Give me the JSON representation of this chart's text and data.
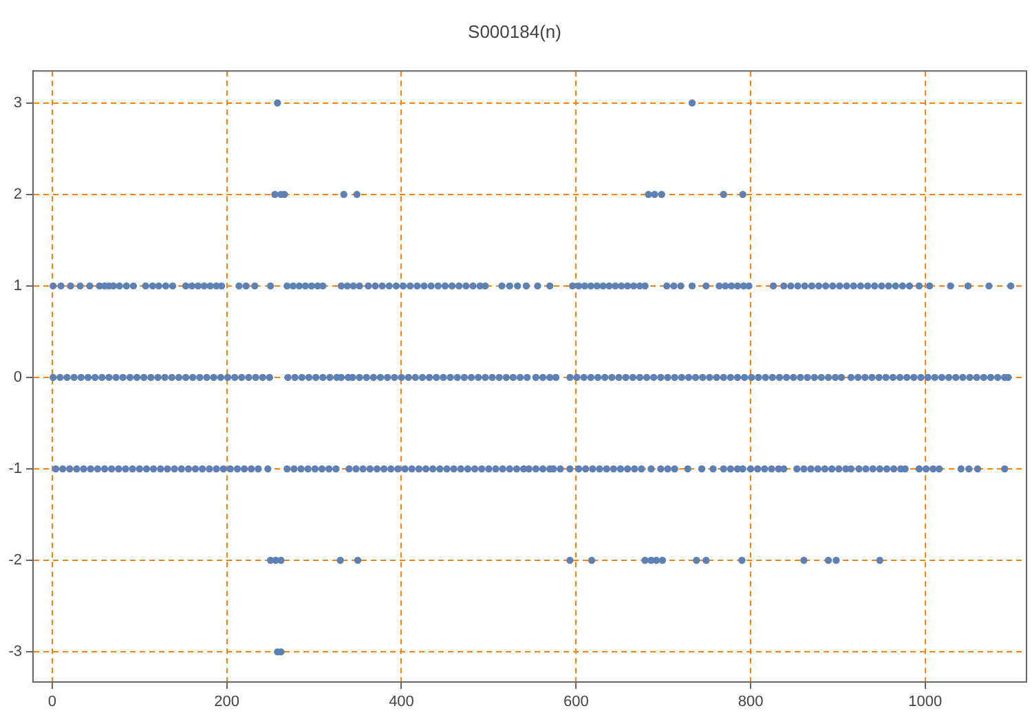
{
  "chart_data": {
    "type": "scatter",
    "title": "S000184(n)",
    "xlim": [
      -22,
      1116
    ],
    "ylim": [
      -3.33,
      3.35
    ],
    "xticks": [
      0,
      200,
      400,
      600,
      800,
      1000
    ],
    "yticks": [
      -3,
      -2,
      -1,
      0,
      1,
      2,
      3
    ],
    "grid": true,
    "legend": false,
    "marker": "circle",
    "series": [
      {
        "color": "#5e81b5",
        "x": [
          258,
          733
        ],
        "values": [
          3,
          3
        ]
      },
      {
        "color": "#5e81b5",
        "x": [
          255,
          262,
          266,
          334,
          349,
          683,
          690,
          698,
          769,
          791
        ],
        "values": [
          2,
          2,
          2,
          2,
          2,
          2,
          2,
          2,
          2,
          2
        ]
      },
      {
        "color": "#5e81b5",
        "x": [
          1,
          10,
          21,
          32,
          43,
          54,
          60,
          65,
          70,
          77,
          85,
          93,
          107,
          115,
          122,
          130,
          138,
          153,
          160,
          167,
          174,
          181,
          188,
          194,
          214,
          222,
          232,
          250,
          269,
          276,
          283,
          290,
          297,
          304,
          310,
          331,
          338,
          345,
          352,
          362,
          370,
          378,
          386,
          394,
          402,
          410,
          418,
          426,
          434,
          442,
          450,
          458,
          466,
          474,
          482,
          490,
          496,
          515,
          524,
          533,
          543,
          556,
          570,
          596,
          603,
          610,
          617,
          624,
          631,
          638,
          645,
          652,
          659,
          666,
          673,
          679,
          704,
          712,
          720,
          733,
          749,
          764,
          771,
          778,
          785,
          792,
          798,
          826,
          838,
          846,
          854,
          862,
          870,
          878,
          886,
          894,
          902,
          910,
          918,
          926,
          934,
          942,
          950,
          958,
          966,
          974,
          982,
          993,
          1005,
          1029,
          1049,
          1073,
          1098
        ],
        "values": [
          1,
          1,
          1,
          1,
          1,
          1,
          1,
          1,
          1,
          1,
          1,
          1,
          1,
          1,
          1,
          1,
          1,
          1,
          1,
          1,
          1,
          1,
          1,
          1,
          1,
          1,
          1,
          1,
          1,
          1,
          1,
          1,
          1,
          1,
          1,
          1,
          1,
          1,
          1,
          1,
          1,
          1,
          1,
          1,
          1,
          1,
          1,
          1,
          1,
          1,
          1,
          1,
          1,
          1,
          1,
          1,
          1,
          1,
          1,
          1,
          1,
          1,
          1,
          1,
          1,
          1,
          1,
          1,
          1,
          1,
          1,
          1,
          1,
          1,
          1,
          1,
          1,
          1,
          1,
          1,
          1,
          1,
          1,
          1,
          1,
          1,
          1,
          1,
          1,
          1,
          1,
          1,
          1,
          1,
          1,
          1,
          1,
          1,
          1,
          1,
          1,
          1,
          1,
          1,
          1,
          1,
          1,
          1,
          1,
          1,
          1,
          1,
          1
        ]
      },
      {
        "color": "#5e81b5",
        "x": [
          1,
          9,
          17,
          25,
          33,
          41,
          49,
          57,
          65,
          73,
          81,
          89,
          97,
          105,
          113,
          121,
          129,
          137,
          145,
          153,
          161,
          169,
          177,
          185,
          193,
          201,
          209,
          217,
          225,
          233,
          241,
          249,
          270,
          278,
          286,
          294,
          302,
          310,
          318,
          326,
          331,
          339,
          344,
          352,
          360,
          368,
          376,
          384,
          392,
          400,
          408,
          416,
          424,
          432,
          440,
          448,
          456,
          464,
          472,
          480,
          488,
          496,
          504,
          512,
          520,
          528,
          536,
          544,
          554,
          562,
          570,
          577,
          593,
          601,
          609,
          617,
          625,
          633,
          641,
          649,
          657,
          665,
          673,
          681,
          689,
          697,
          705,
          713,
          721,
          729,
          737,
          745,
          753,
          761,
          769,
          777,
          785,
          793,
          801,
          809,
          817,
          825,
          833,
          841,
          849,
          857,
          865,
          873,
          881,
          889,
          897,
          904,
          915,
          923,
          931,
          939,
          947,
          955,
          963,
          971,
          979,
          987,
          995,
          1003,
          1011,
          1019,
          1027,
          1035,
          1043,
          1051,
          1059,
          1067,
          1075,
          1083,
          1091,
          1095
        ],
        "values": [
          0,
          0,
          0,
          0,
          0,
          0,
          0,
          0,
          0,
          0,
          0,
          0,
          0,
          0,
          0,
          0,
          0,
          0,
          0,
          0,
          0,
          0,
          0,
          0,
          0,
          0,
          0,
          0,
          0,
          0,
          0,
          0,
          0,
          0,
          0,
          0,
          0,
          0,
          0,
          0,
          0,
          0,
          0,
          0,
          0,
          0,
          0,
          0,
          0,
          0,
          0,
          0,
          0,
          0,
          0,
          0,
          0,
          0,
          0,
          0,
          0,
          0,
          0,
          0,
          0,
          0,
          0,
          0,
          0,
          0,
          0,
          0,
          0,
          0,
          0,
          0,
          0,
          0,
          0,
          0,
          0,
          0,
          0,
          0,
          0,
          0,
          0,
          0,
          0,
          0,
          0,
          0,
          0,
          0,
          0,
          0,
          0,
          0,
          0,
          0,
          0,
          0,
          0,
          0,
          0,
          0,
          0,
          0,
          0,
          0,
          0,
          0,
          0,
          0,
          0,
          0,
          0,
          0,
          0,
          0,
          0,
          0,
          0,
          0,
          0,
          0,
          0,
          0,
          0,
          0,
          0,
          0,
          0,
          0,
          0,
          0
        ]
      },
      {
        "color": "#5e81b5",
        "x": [
          4,
          12,
          20,
          28,
          36,
          44,
          52,
          60,
          68,
          76,
          84,
          92,
          100,
          108,
          116,
          124,
          132,
          140,
          148,
          156,
          164,
          172,
          180,
          188,
          196,
          204,
          212,
          220,
          228,
          236,
          247,
          269,
          277,
          285,
          293,
          301,
          309,
          317,
          325,
          340,
          348,
          356,
          364,
          372,
          380,
          388,
          396,
          404,
          412,
          420,
          428,
          436,
          444,
          452,
          460,
          468,
          476,
          484,
          492,
          500,
          508,
          516,
          524,
          532,
          540,
          546,
          554,
          562,
          570,
          574,
          582,
          593,
          603,
          611,
          619,
          627,
          635,
          643,
          651,
          659,
          667,
          675,
          686,
          697,
          705,
          713,
          728,
          744,
          757,
          769,
          777,
          785,
          791,
          800,
          808,
          816,
          824,
          832,
          838,
          853,
          861,
          869,
          877,
          885,
          893,
          901,
          909,
          915,
          924,
          932,
          940,
          948,
          956,
          964,
          972,
          977,
          993,
          1001,
          1009,
          1016,
          1041,
          1050,
          1060,
          1091
        ],
        "values": [
          -1,
          -1,
          -1,
          -1,
          -1,
          -1,
          -1,
          -1,
          -1,
          -1,
          -1,
          -1,
          -1,
          -1,
          -1,
          -1,
          -1,
          -1,
          -1,
          -1,
          -1,
          -1,
          -1,
          -1,
          -1,
          -1,
          -1,
          -1,
          -1,
          -1,
          -1,
          -1,
          -1,
          -1,
          -1,
          -1,
          -1,
          -1,
          -1,
          -1,
          -1,
          -1,
          -1,
          -1,
          -1,
          -1,
          -1,
          -1,
          -1,
          -1,
          -1,
          -1,
          -1,
          -1,
          -1,
          -1,
          -1,
          -1,
          -1,
          -1,
          -1,
          -1,
          -1,
          -1,
          -1,
          -1,
          -1,
          -1,
          -1,
          -1,
          -1,
          -1,
          -1,
          -1,
          -1,
          -1,
          -1,
          -1,
          -1,
          -1,
          -1,
          -1,
          -1,
          -1,
          -1,
          -1,
          -1,
          -1,
          -1,
          -1,
          -1,
          -1,
          -1,
          -1,
          -1,
          -1,
          -1,
          -1,
          -1,
          -1,
          -1,
          -1,
          -1,
          -1,
          -1,
          -1,
          -1,
          -1,
          -1,
          -1,
          -1,
          -1,
          -1,
          -1,
          -1,
          -1,
          -1,
          -1,
          -1,
          -1,
          -1,
          -1,
          -1,
          -1
        ]
      },
      {
        "color": "#5e81b5",
        "x": [
          250,
          256,
          262,
          330,
          350,
          593,
          618,
          679,
          686,
          692,
          699,
          738,
          749,
          790,
          861,
          889,
          898,
          948
        ],
        "values": [
          -2,
          -2,
          -2,
          -2,
          -2,
          -2,
          -2,
          -2,
          -2,
          -2,
          -2,
          -2,
          -2,
          -2,
          -2,
          -2,
          -2,
          -2
        ]
      },
      {
        "color": "#5e81b5",
        "x": [
          258,
          262
        ],
        "values": [
          -3,
          -3
        ]
      }
    ]
  }
}
